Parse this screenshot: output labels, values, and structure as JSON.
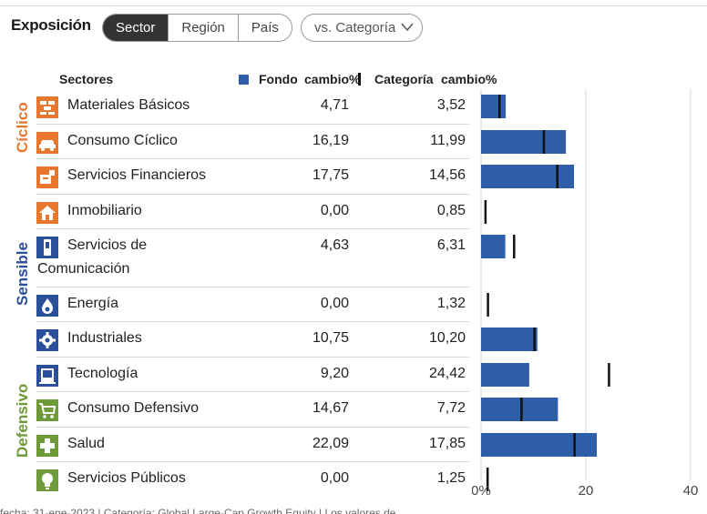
{
  "title": "Exposición",
  "tabs": [
    {
      "label": "Sector",
      "active": true
    },
    {
      "label": "Región",
      "active": false
    },
    {
      "label": "País",
      "active": false
    }
  ],
  "compare": {
    "label": "vs. Categoría"
  },
  "headers": {
    "sectors": "Sectores",
    "fund": "Fondo",
    "fund_change": "cambio%",
    "category": "Categoría",
    "category_change": "cambio%"
  },
  "groups": [
    {
      "label": "Cíclico",
      "color": "#e8772e"
    },
    {
      "label": "Sensible",
      "color": "#2b4f9b"
    },
    {
      "label": "Defensivo",
      "color": "#6e9a3a"
    }
  ],
  "colors": {
    "bar": "#2f5ea8",
    "marker": "#111111",
    "gridline": "#d9d9d9"
  },
  "icons": [
    "bricks-icon",
    "car-icon",
    "finance-icon",
    "house-icon",
    "phone-icon",
    "flame-icon",
    "gear-icon",
    "computer-icon",
    "cart-icon",
    "cross-icon",
    "bulb-icon"
  ],
  "footer": "fecha: 31-ene-2023 | Categoría: Global Large-Cap Growth Equity | Los valores de",
  "chart_data": {
    "type": "bar",
    "orientation": "horizontal",
    "categories": [
      "Materiales Básicos",
      "Consumo Cíclico",
      "Servicios Financieros",
      "Inmobiliario",
      "Servicios de Comunicación",
      "Energía",
      "Industriales",
      "Tecnología",
      "Consumo Defensivo",
      "Salud",
      "Servicios Públicos"
    ],
    "series": [
      {
        "name": "Fondo",
        "values": [
          4.71,
          16.19,
          17.75,
          0.0,
          4.63,
          0.0,
          10.75,
          9.2,
          14.67,
          22.09,
          0.0
        ]
      },
      {
        "name": "Categoría",
        "values": [
          3.52,
          11.99,
          14.56,
          0.85,
          6.31,
          1.32,
          10.2,
          24.42,
          7.72,
          17.85,
          1.25
        ]
      }
    ],
    "fund_display": [
      "4,71",
      "16,19",
      "17,75",
      "0,00",
      "4,63",
      "0,00",
      "10,75",
      "9,20",
      "14,67",
      "22,09",
      "0,00"
    ],
    "category_display": [
      "3,52",
      "11,99",
      "14,56",
      "0,85",
      "6,31",
      "1,32",
      "10,20",
      "24,42",
      "7,72",
      "17,85",
      "1,25"
    ],
    "xlim": [
      0,
      40
    ],
    "xticks": [
      0,
      20,
      40
    ],
    "xtick_labels": [
      "0%",
      "20",
      "40"
    ],
    "grid": true
  }
}
